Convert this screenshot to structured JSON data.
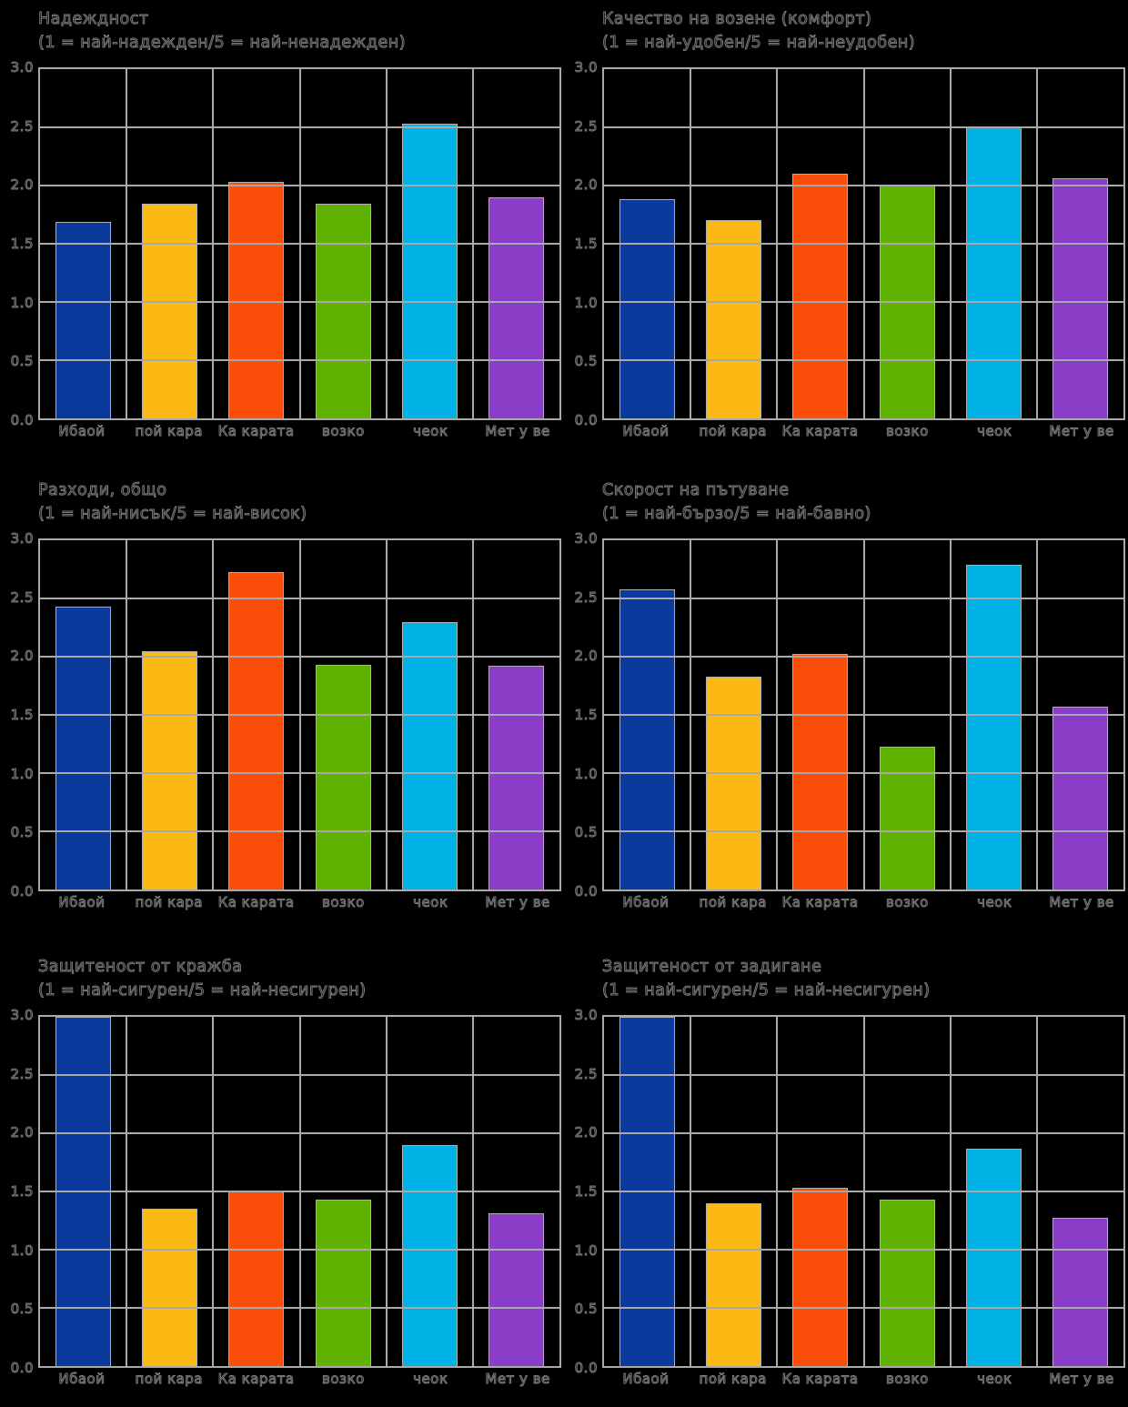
{
  "page": {
    "background": "#000000",
    "gridline_color": "#a9a9a9",
    "bar_edge_color": "#b0b0b0",
    "text_style": "hollow-outline"
  },
  "axis": {
    "ymin": 0.0,
    "ymax": 3.0,
    "step": 0.5,
    "tick_labels": [
      "3.0",
      "2.5",
      "2.0",
      "1.5",
      "1.0",
      "0.5",
      "0.0"
    ]
  },
  "categories": [
    "Ибаой",
    "пой кара",
    "Ка карата",
    "возко",
    "чеок",
    "Мет у ве"
  ],
  "bar_colors": [
    "#0a3a9c",
    "#fcb813",
    "#fb4e0a",
    "#5fb300",
    "#00b3e6",
    "#8a3ec8"
  ],
  "chart_data": [
    {
      "type": "bar",
      "title": "Надеждност",
      "subtitle": "(1 = най-надежден/5 = най-ненадежден)",
      "values": [
        1.69,
        1.84,
        2.03,
        1.84,
        2.53,
        1.9
      ],
      "ylim": [
        0,
        3
      ],
      "ytick_step": 0.5,
      "grid": true,
      "legend": false
    },
    {
      "type": "bar",
      "title": "Качество на возене (комфорт)",
      "subtitle": "(1 = най-удобен/5 = най-неудобен)",
      "values": [
        1.88,
        1.7,
        2.1,
        2.0,
        2.5,
        2.06
      ],
      "ylim": [
        0,
        3
      ],
      "ytick_step": 0.5,
      "grid": true,
      "legend": false
    },
    {
      "type": "bar",
      "title": "Разходи, общо",
      "subtitle": "(1 = най-нисък/5 = най-висок)",
      "values": [
        2.43,
        2.05,
        2.73,
        1.93,
        2.3,
        1.92
      ],
      "ylim": [
        0,
        3
      ],
      "ytick_step": 0.5,
      "grid": true,
      "legend": false
    },
    {
      "type": "bar",
      "title": "Скорост на пътуване",
      "subtitle": "(1 = най-бързо/5 = най-бавно)",
      "values": [
        2.58,
        1.83,
        2.02,
        1.23,
        2.79,
        1.57
      ],
      "ylim": [
        0,
        3
      ],
      "ytick_step": 0.5,
      "grid": true,
      "legend": false
    },
    {
      "type": "bar",
      "title": "Защитеност от кражба",
      "subtitle": "(1 = най-сигурен/5 = най-несигурен)",
      "values": [
        3.0,
        1.35,
        1.5,
        1.43,
        1.9,
        1.31
      ],
      "ylim": [
        0,
        3
      ],
      "ytick_step": 0.5,
      "grid": true,
      "legend": false
    },
    {
      "type": "bar",
      "title": "Защитеност от задигане",
      "subtitle": "(1 = най-сигурен/5 = най-несигурен)",
      "values": [
        3.0,
        1.4,
        1.53,
        1.43,
        1.87,
        1.27
      ],
      "ylim": [
        0,
        3
      ],
      "ytick_step": 0.5,
      "grid": true,
      "legend": false
    }
  ]
}
